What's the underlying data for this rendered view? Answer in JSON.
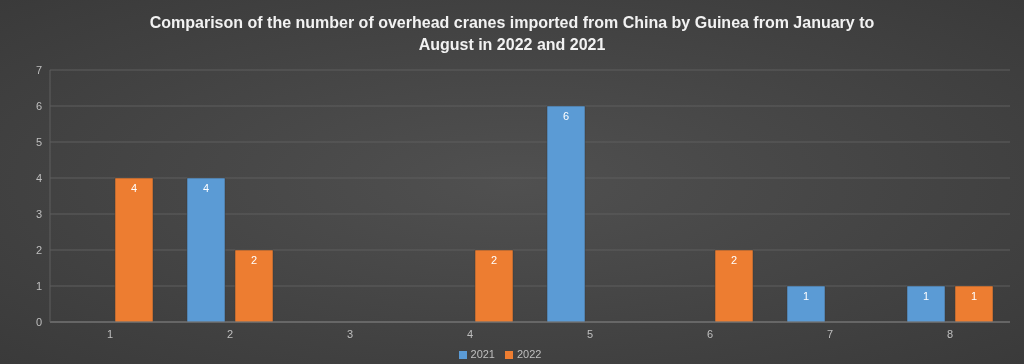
{
  "chart_data": {
    "type": "bar",
    "title": "Comparison of the number of overhead cranes imported from China by Guinea from January to August in 2022 and 2021",
    "categories": [
      "1",
      "2",
      "3",
      "4",
      "5",
      "6",
      "7",
      "8"
    ],
    "series": [
      {
        "name": "2021",
        "color": "#5b9bd5",
        "values": [
          null,
          4,
          null,
          null,
          6,
          null,
          1,
          1
        ]
      },
      {
        "name": "2022",
        "color": "#ed7d31",
        "values": [
          4,
          2,
          null,
          2,
          null,
          2,
          null,
          1
        ]
      }
    ],
    "ylim": [
      0,
      7
    ],
    "yticks": [
      0,
      1,
      2,
      3,
      4,
      5,
      6,
      7
    ],
    "grid": true,
    "legend": "bottom",
    "data_labels": true
  }
}
